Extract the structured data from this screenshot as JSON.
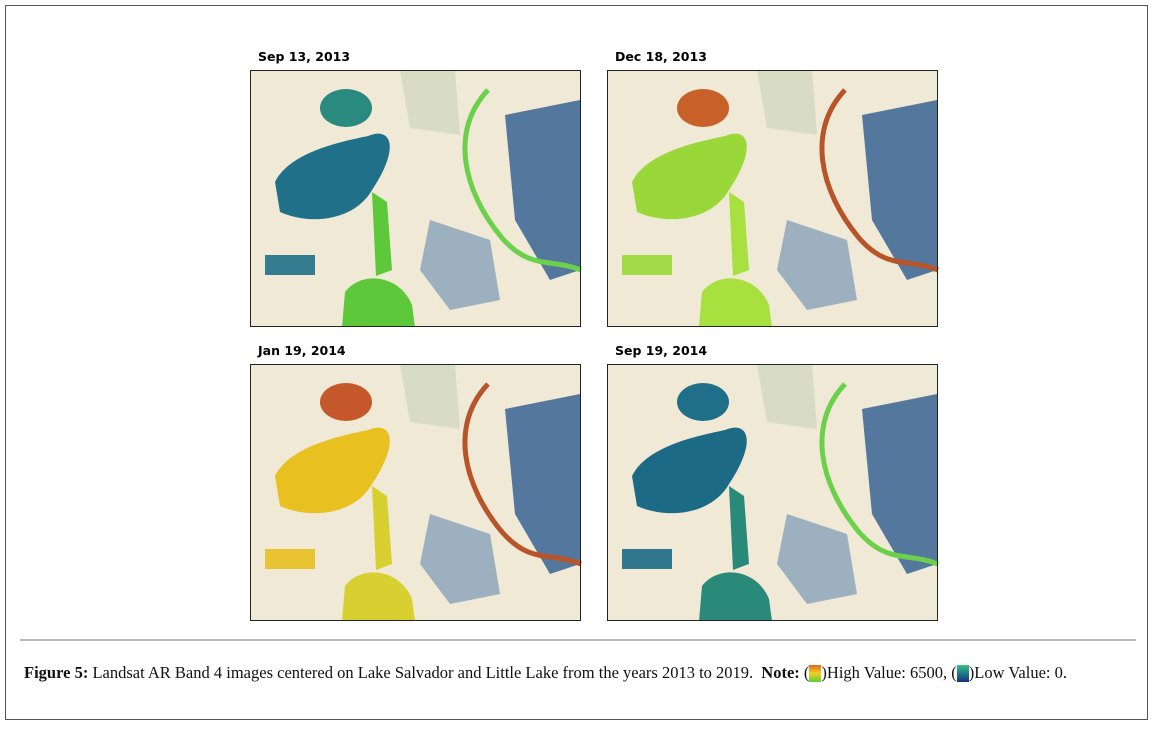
{
  "panels": [
    {
      "label": "Sep 13, 2013"
    },
    {
      "label": "Dec 18, 2013"
    },
    {
      "label": "Jan 19, 2014"
    },
    {
      "label": "Sep 19, 2014"
    }
  ],
  "caption": {
    "figure_label": "Figure 5:",
    "text": "Landsat AR Band 4 images centered on Lake Salvador and Little Lake from the years 2013 to 2019.",
    "note_label": "Note:",
    "open": "(",
    "high": ")High Value: 6500,",
    "low": ")Low Value: 0."
  }
}
